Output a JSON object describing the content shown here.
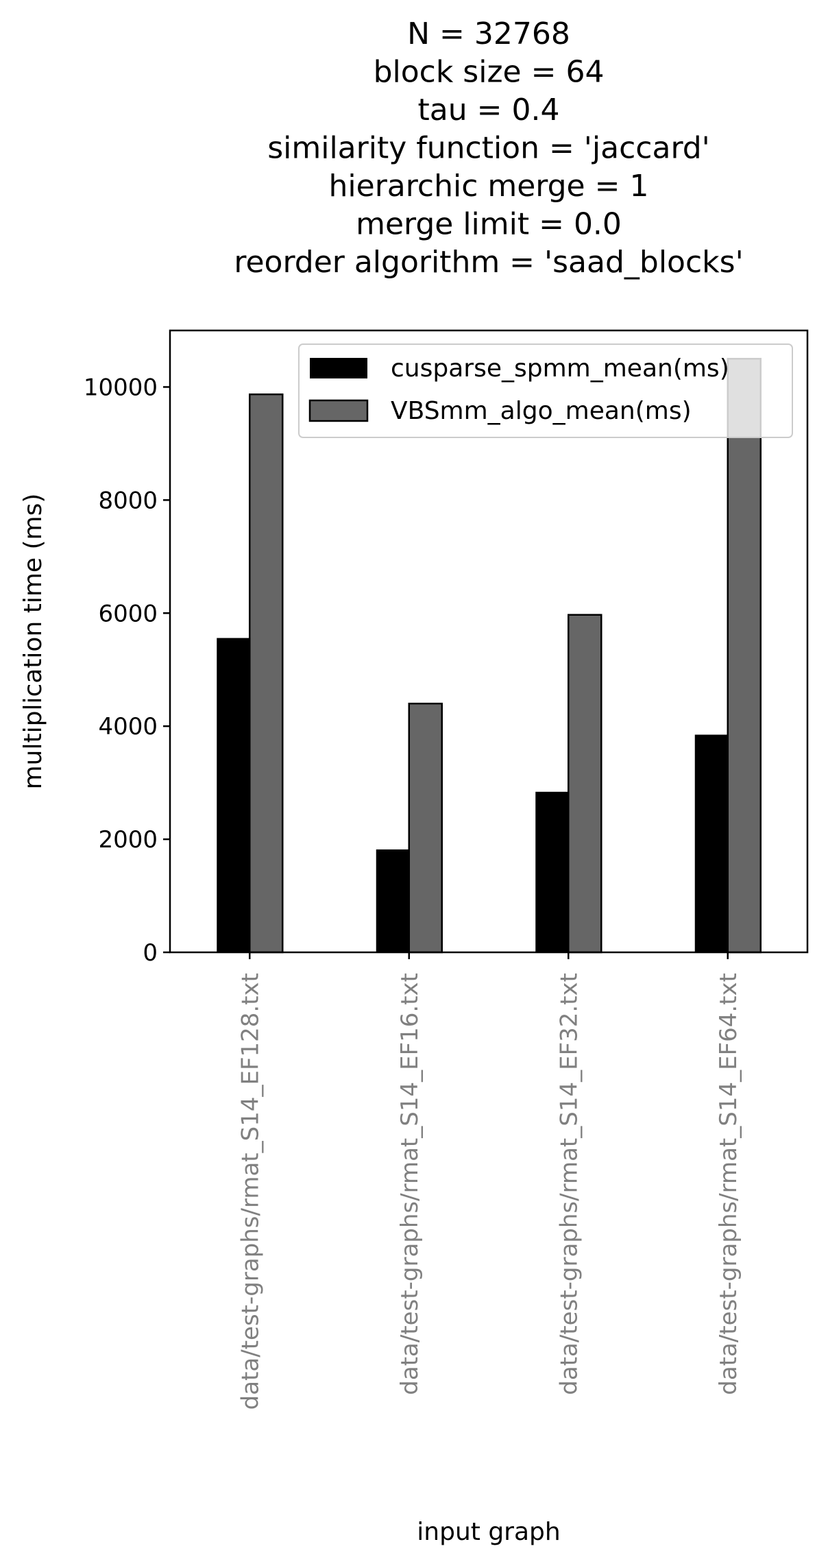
{
  "chart_data": {
    "type": "bar",
    "title_lines": [
      "N = 32768",
      "block size = 64",
      "tau = 0.4",
      "similarity function = 'jaccard'",
      "hierarchic merge = 1",
      "merge limit = 0.0",
      "reorder algorithm = 'saad_blocks'"
    ],
    "xlabel": "input graph",
    "ylabel": "multiplication time (ms)",
    "categories": [
      "data/test-graphs/rmat_S14_EF128.txt",
      "data/test-graphs/rmat_S14_EF16.txt",
      "data/test-graphs/rmat_S14_EF32.txt",
      "data/test-graphs/rmat_S14_EF64.txt"
    ],
    "series": [
      {
        "name": "cusparse_spmm_mean(ms)",
        "values": [
          5560,
          1820,
          2840,
          3850
        ],
        "color": "#000000"
      },
      {
        "name": "VBSmm_algo_mean(ms)",
        "values": [
          9870,
          4400,
          5970,
          10500
        ],
        "color": "#666666"
      }
    ],
    "ylim": [
      0,
      11000
    ],
    "yticks": [
      0,
      2000,
      4000,
      6000,
      8000,
      10000
    ],
    "grid": false,
    "legend_position": "upper-right",
    "category_label_color": "#808080"
  }
}
